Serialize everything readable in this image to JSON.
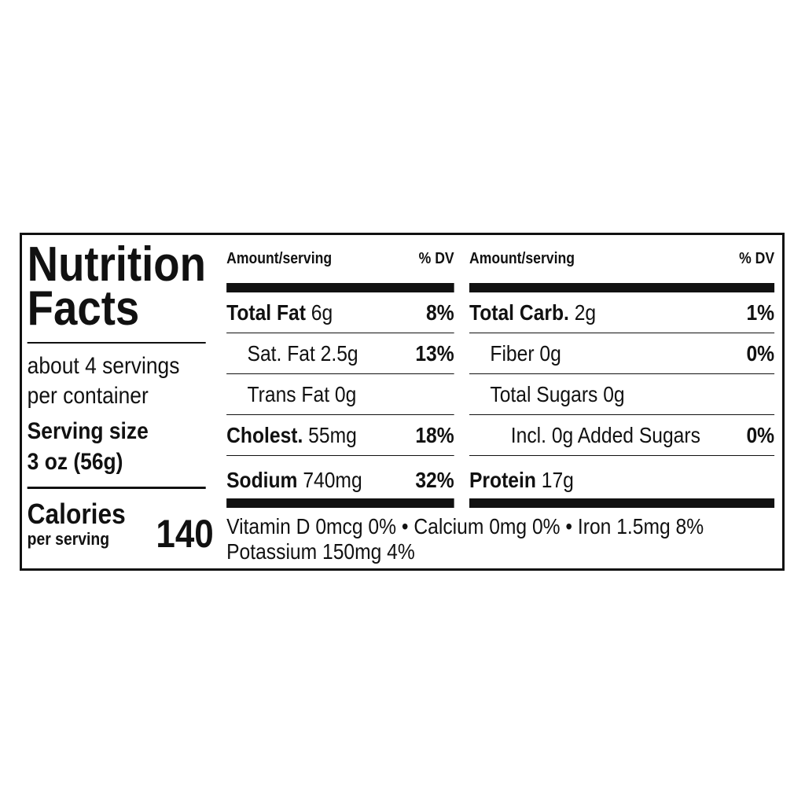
{
  "title": [
    "Nutrition",
    "Facts"
  ],
  "servings": [
    "about 4 servings",
    "per container"
  ],
  "serving_size": {
    "label": "Serving size",
    "amount": "3 oz (56g)"
  },
  "calories": {
    "label": "Calories",
    "sublabel": "per serving",
    "value": 140
  },
  "columns": [
    {
      "header": {
        "amount": "Amount/serving",
        "dv": "% DV"
      },
      "rows": [
        {
          "name": "Total Fat",
          "amount": "6g",
          "dv": "8%"
        },
        {
          "name": "Sat. Fat",
          "amount": "2.5g",
          "dv": "13%"
        },
        {
          "name": "Trans Fat",
          "amount": "0g"
        },
        {
          "name": "Cholest.",
          "amount": "55mg",
          "dv": "18%"
        },
        {
          "name": "Sodium",
          "amount": "740mg",
          "dv": "32%"
        }
      ]
    },
    {
      "header": {
        "amount": "Amount/serving",
        "dv": "% DV"
      },
      "rows": [
        {
          "name": "Total Carb.",
          "amount": "2g",
          "dv": "1%"
        },
        {
          "name": "Fiber",
          "amount": "0g",
          "dv": "0%"
        },
        {
          "name": "Total Sugars",
          "amount": "0g"
        },
        {
          "name": "Incl. 0g Added Sugars",
          "dv": "0%"
        },
        {
          "name": "Protein",
          "amount": "17g"
        }
      ]
    }
  ],
  "footer": [
    "Vitamin D 0mcg 0% • Calcium 0mg 0% • Iron 1.5mg 8%",
    "Potassium 150mg 4%"
  ]
}
